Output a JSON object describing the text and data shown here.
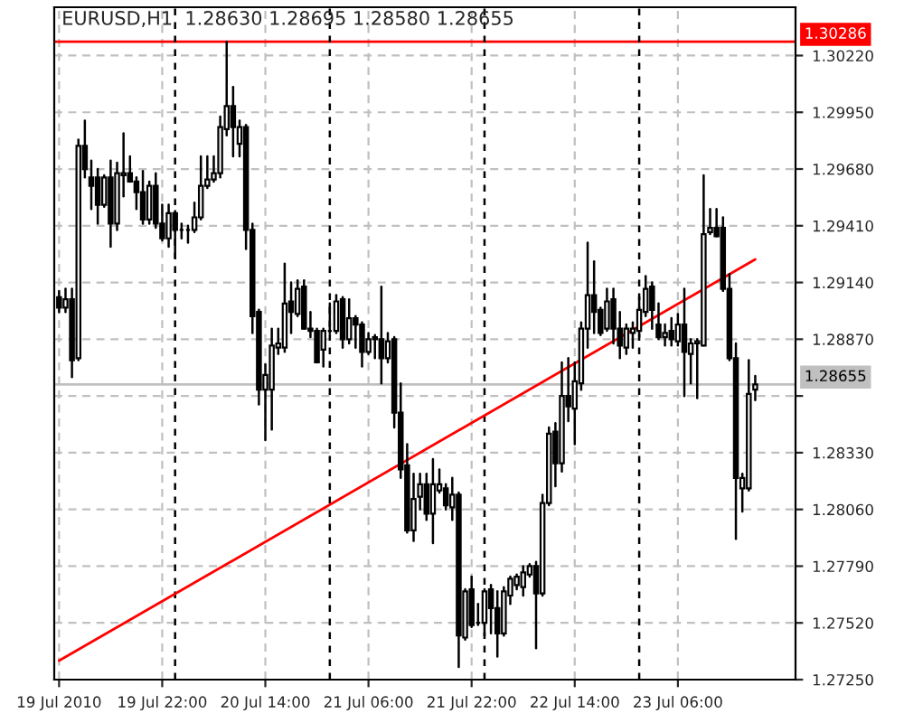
{
  "chart_data": {
    "type": "candlestick",
    "title": "EURUSD,H1  1.28630 1.28695 1.28580 1.28655",
    "x": [
      "2010-07-19T06:00",
      "2010-07-19T07:00",
      "2010-07-19T08:00",
      "2010-07-19T09:00",
      "2010-07-19T10:00",
      "2010-07-19T11:00",
      "2010-07-19T12:00",
      "2010-07-19T13:00",
      "2010-07-19T14:00",
      "2010-07-19T15:00",
      "2010-07-19T16:00",
      "2010-07-19T17:00",
      "2010-07-19T18:00",
      "2010-07-19T19:00",
      "2010-07-19T20:00",
      "2010-07-19T21:00",
      "2010-07-19T22:00",
      "2010-07-19T23:00",
      "2010-07-20T00:00",
      "2010-07-20T01:00",
      "2010-07-20T02:00",
      "2010-07-20T03:00",
      "2010-07-20T04:00",
      "2010-07-20T05:00",
      "2010-07-20T06:00",
      "2010-07-20T07:00",
      "2010-07-20T08:00",
      "2010-07-20T09:00",
      "2010-07-20T10:00",
      "2010-07-20T11:00",
      "2010-07-20T12:00",
      "2010-07-20T13:00",
      "2010-07-20T14:00",
      "2010-07-20T15:00",
      "2010-07-20T16:00",
      "2010-07-20T17:00",
      "2010-07-20T18:00",
      "2010-07-20T19:00",
      "2010-07-20T20:00",
      "2010-07-20T21:00",
      "2010-07-20T22:00",
      "2010-07-20T23:00",
      "2010-07-21T00:00",
      "2010-07-21T01:00",
      "2010-07-21T02:00",
      "2010-07-21T03:00",
      "2010-07-21T04:00",
      "2010-07-21T05:00",
      "2010-07-21T06:00",
      "2010-07-21T07:00",
      "2010-07-21T08:00",
      "2010-07-21T09:00",
      "2010-07-21T10:00",
      "2010-07-21T11:00",
      "2010-07-21T12:00",
      "2010-07-21T13:00",
      "2010-07-21T14:00",
      "2010-07-21T15:00",
      "2010-07-21T16:00",
      "2010-07-21T17:00",
      "2010-07-21T18:00",
      "2010-07-21T19:00",
      "2010-07-21T20:00",
      "2010-07-21T21:00",
      "2010-07-21T22:00",
      "2010-07-21T23:00",
      "2010-07-22T00:00",
      "2010-07-22T01:00",
      "2010-07-22T02:00",
      "2010-07-22T03:00",
      "2010-07-22T04:00",
      "2010-07-22T05:00",
      "2010-07-22T06:00",
      "2010-07-22T07:00",
      "2010-07-22T08:00",
      "2010-07-22T09:00",
      "2010-07-22T10:00",
      "2010-07-22T11:00",
      "2010-07-22T12:00",
      "2010-07-22T13:00",
      "2010-07-22T14:00",
      "2010-07-22T15:00",
      "2010-07-22T16:00",
      "2010-07-22T17:00",
      "2010-07-22T18:00",
      "2010-07-22T19:00",
      "2010-07-22T20:00",
      "2010-07-22T21:00",
      "2010-07-22T22:00",
      "2010-07-22T23:00",
      "2010-07-23T00:00",
      "2010-07-23T01:00",
      "2010-07-23T02:00",
      "2010-07-23T03:00",
      "2010-07-23T04:00",
      "2010-07-23T05:00",
      "2010-07-23T06:00",
      "2010-07-23T07:00",
      "2010-07-23T08:00",
      "2010-07-23T09:00",
      "2010-07-23T10:00",
      "2010-07-23T11:00",
      "2010-07-23T12:00",
      "2010-07-23T13:00",
      "2010-07-23T14:00",
      "2010-07-23T15:00",
      "2010-07-23T16:00",
      "2010-07-23T17:00",
      "2010-07-23T18:00"
    ],
    "ohlc": [
      [
        1.2907,
        1.291,
        1.29,
        1.2902
      ],
      [
        1.2902,
        1.2911,
        1.29,
        1.2906
      ],
      [
        1.2906,
        1.2911,
        1.2869,
        1.2877
      ],
      [
        1.2878,
        1.2982,
        1.2877,
        1.2979
      ],
      [
        1.2979,
        1.2991,
        1.2964,
        1.2968
      ],
      [
        1.2964,
        1.2972,
        1.2949,
        1.296
      ],
      [
        1.2964,
        1.2968,
        1.2942,
        1.2951
      ],
      [
        1.2951,
        1.2965,
        1.295,
        1.2964
      ],
      [
        1.2964,
        1.2972,
        1.2931,
        1.2942
      ],
      [
        1.2942,
        1.2971,
        1.2939,
        1.2966
      ],
      [
        1.2965,
        1.2985,
        1.2955,
        1.2966
      ],
      [
        1.2966,
        1.2974,
        1.2962,
        1.2962
      ],
      [
        1.2962,
        1.2964,
        1.2949,
        1.2957
      ],
      [
        1.2957,
        1.2967,
        1.2942,
        1.2944
      ],
      [
        1.2944,
        1.2962,
        1.2942,
        1.296
      ],
      [
        1.296,
        1.2966,
        1.294,
        1.2942
      ],
      [
        1.2942,
        1.2951,
        1.2934,
        1.2935
      ],
      [
        1.2935,
        1.2951,
        1.2931,
        1.2947
      ],
      [
        1.2947,
        1.2948,
        1.2926,
        1.2939
      ],
      [
        1.2939,
        1.2942,
        1.2935,
        1.2939
      ],
      [
        1.2939,
        1.2941,
        1.2933,
        1.2939
      ],
      [
        1.2939,
        1.2952,
        1.2938,
        1.2945
      ],
      [
        1.2945,
        1.2974,
        1.2944,
        1.296
      ],
      [
        1.296,
        1.2974,
        1.2959,
        1.2963
      ],
      [
        1.2963,
        1.2974,
        1.2962,
        1.2966
      ],
      [
        1.2966,
        1.2993,
        1.2964,
        1.2988
      ],
      [
        1.2987,
        1.30286,
        1.2984,
        1.2998
      ],
      [
        1.2998,
        1.3007,
        1.2974,
        1.2988
      ],
      [
        1.298,
        1.2991,
        1.2974,
        1.2988
      ],
      [
        1.2988,
        1.2989,
        1.293,
        1.2939
      ],
      [
        1.2939,
        1.2942,
        1.289,
        1.2898
      ],
      [
        1.29,
        1.2901,
        1.2856,
        1.2863
      ],
      [
        1.2863,
        1.2875,
        1.2839,
        1.287
      ],
      [
        1.2863,
        1.2892,
        1.2844,
        1.2884
      ],
      [
        1.2883,
        1.2892,
        1.288,
        1.2885
      ],
      [
        1.2883,
        1.2923,
        1.2881,
        1.2904
      ],
      [
        1.2905,
        1.2914,
        1.289,
        1.29
      ],
      [
        1.2899,
        1.2915,
        1.2898,
        1.2911
      ],
      [
        1.2912,
        1.2915,
        1.2892,
        1.2892
      ],
      [
        1.2892,
        1.29,
        1.2888,
        1.2891
      ],
      [
        1.2891,
        1.2892,
        1.2876,
        1.2876
      ],
      [
        1.2882,
        1.2892,
        1.2874,
        1.2891
      ],
      [
        1.2891,
        1.2904,
        1.289,
        1.2891
      ],
      [
        1.2891,
        1.2908,
        1.289,
        1.2905
      ],
      [
        1.2906,
        1.2907,
        1.2883,
        1.2887
      ],
      [
        1.2887,
        1.2906,
        1.2885,
        1.2897
      ],
      [
        1.2897,
        1.2898,
        1.2883,
        1.2894
      ],
      [
        1.2894,
        1.2895,
        1.2874,
        1.2881
      ],
      [
        1.2881,
        1.289,
        1.288,
        1.2887
      ],
      [
        1.2888,
        1.2889,
        1.2878,
        1.2887
      ],
      [
        1.2887,
        1.2912,
        1.2866,
        1.2878
      ],
      [
        1.2878,
        1.289,
        1.2876,
        1.2886
      ],
      [
        1.2887,
        1.2888,
        1.2845,
        1.2852
      ],
      [
        1.2852,
        1.2866,
        1.2821,
        1.2825
      ],
      [
        1.2827,
        1.2837,
        1.2795,
        1.2796
      ],
      [
        1.2796,
        1.2823,
        1.2791,
        1.2811
      ],
      [
        1.2812,
        1.2823,
        1.2806,
        1.2818
      ],
      [
        1.2818,
        1.2823,
        1.2801,
        1.2804
      ],
      [
        1.2804,
        1.283,
        1.279,
        1.2818
      ],
      [
        1.2815,
        1.2825,
        1.2814,
        1.2818
      ],
      [
        1.2816,
        1.2818,
        1.2806,
        1.2808
      ],
      [
        1.2807,
        1.2821,
        1.2801,
        1.2813
      ],
      [
        1.2813,
        1.2814,
        1.2731,
        1.2746
      ],
      [
        1.2745,
        1.2768,
        1.2744,
        1.2767
      ],
      [
        1.2768,
        1.2774,
        1.275,
        1.2751
      ],
      [
        1.2752,
        1.2761,
        1.2751,
        1.2752
      ],
      [
        1.2752,
        1.2768,
        1.2746,
        1.2767
      ],
      [
        1.2768,
        1.277,
        1.2747,
        1.2759
      ],
      [
        1.2759,
        1.2767,
        1.2736,
        1.2747
      ],
      [
        1.2747,
        1.2769,
        1.2746,
        1.2767
      ],
      [
        1.2765,
        1.2774,
        1.2761,
        1.2773
      ],
      [
        1.277,
        1.2775,
        1.2768,
        1.2774
      ],
      [
        1.2769,
        1.2779,
        1.2765,
        1.2776
      ],
      [
        1.2775,
        1.278,
        1.2774,
        1.2779
      ],
      [
        1.2779,
        1.2781,
        1.274,
        1.2766
      ],
      [
        1.2766,
        1.2813,
        1.2765,
        1.2809
      ],
      [
        1.2809,
        1.2845,
        1.2808,
        1.2842
      ],
      [
        1.2843,
        1.2847,
        1.2817,
        1.2828
      ],
      [
        1.2828,
        1.2876,
        1.2824,
        1.286
      ],
      [
        1.286,
        1.2878,
        1.2848,
        1.2855
      ],
      [
        1.2854,
        1.2876,
        1.2837,
        1.2867
      ],
      [
        1.2866,
        1.2895,
        1.2863,
        1.2892
      ],
      [
        1.2892,
        1.2933,
        1.2883,
        1.2908
      ],
      [
        1.2908,
        1.2924,
        1.289,
        1.29
      ],
      [
        1.2901,
        1.2902,
        1.2889,
        1.289
      ],
      [
        1.2892,
        1.2911,
        1.2891,
        1.2905
      ],
      [
        1.2906,
        1.2911,
        1.2885,
        1.2892
      ],
      [
        1.2892,
        1.29,
        1.2878,
        1.2884
      ],
      [
        1.2883,
        1.2894,
        1.288,
        1.2892
      ],
      [
        1.289,
        1.2895,
        1.2883,
        1.2892
      ],
      [
        1.2891,
        1.2907,
        1.2888,
        1.2901
      ],
      [
        1.29,
        1.2917,
        1.2898,
        1.2911
      ],
      [
        1.2912,
        1.2914,
        1.2892,
        1.2901
      ],
      [
        1.2894,
        1.2904,
        1.2887,
        1.2888
      ],
      [
        1.2888,
        1.2894,
        1.2884,
        1.289
      ],
      [
        1.2891,
        1.2897,
        1.2884,
        1.2887
      ],
      [
        1.2886,
        1.2899,
        1.2884,
        1.2894
      ],
      [
        1.2894,
        1.2911,
        1.286,
        1.2881
      ],
      [
        1.288,
        1.2887,
        1.2866,
        1.2885
      ],
      [
        1.2885,
        1.2887,
        1.2859,
        1.2886
      ],
      [
        1.2884,
        1.2965,
        1.2884,
        1.2937
      ],
      [
        1.2938,
        1.2949,
        1.2937,
        1.294
      ],
      [
        1.294,
        1.2949,
        1.2936,
        1.2936
      ],
      [
        1.294,
        1.2945,
        1.291,
        1.2911
      ],
      [
        1.2911,
        1.2918,
        1.2877,
        1.2878
      ],
      [
        1.2878,
        1.2885,
        1.2792,
        1.2821
      ],
      [
        1.2816,
        1.2823,
        1.2805,
        1.2821
      ],
      [
        1.2816,
        1.2877,
        1.2815,
        1.2861
      ],
      [
        1.2863,
        1.28695,
        1.2858,
        1.28655
      ]
    ],
    "series": [
      {
        "type": "line",
        "x": [
          "2010-07-19T06:00",
          "2010-07-23T18:00"
        ],
        "values": [
          1.2734,
          1.2925
        ],
        "color": "#ff0000"
      }
    ],
    "xlim": [
      "2010-07-19T05:15",
      "2010-07-24T00:15"
    ],
    "ylim": [
      1.2725,
      1.3045
    ],
    "xticks": [
      {
        "value": "2010-07-19T06:00",
        "label": "19 Jul 2010"
      },
      {
        "value": "2010-07-19T22:00",
        "label": "19 Jul 22:00"
      },
      {
        "value": "2010-07-20T14:00",
        "label": "20 Jul 14:00"
      },
      {
        "value": "2010-07-21T06:00",
        "label": "21 Jul 06:00"
      },
      {
        "value": "2010-07-21T22:00",
        "label": "21 Jul 22:00"
      },
      {
        "value": "2010-07-22T14:00",
        "label": "22 Jul 14:00"
      },
      {
        "value": "2010-07-23T06:00",
        "label": "23 Jul 06:00"
      }
    ],
    "yticks": [
      {
        "value": 1.2725,
        "label": "1.27250"
      },
      {
        "value": 1.2752,
        "label": "1.27520"
      },
      {
        "value": 1.2779,
        "label": "1.27790"
      },
      {
        "value": 1.2806,
        "label": "1.28060"
      },
      {
        "value": 1.2833,
        "label": "1.28330"
      },
      {
        "value": 1.286,
        "label": null
      },
      {
        "value": 1.2887,
        "label": "1.28870"
      },
      {
        "value": 1.2914,
        "label": "1.29140"
      },
      {
        "value": 1.2941,
        "label": "1.29410"
      },
      {
        "value": 1.2968,
        "label": "1.29680"
      },
      {
        "value": 1.2995,
        "label": "1.29950"
      },
      {
        "value": 1.3022,
        "label": "1.30220"
      }
    ],
    "grid": true,
    "ref_lines": [
      {
        "axis": "y",
        "value": 1.30286,
        "label": "1.30286",
        "color": "#ff0000",
        "line_style": "solid"
      },
      {
        "axis": "y",
        "value": 1.28655,
        "label": "1.28655",
        "color": "#c0c0c0",
        "line_style": "solid"
      },
      {
        "axis": "x",
        "value": "2010-07-20T00:00",
        "color": "#000000",
        "line_style": "dashed"
      },
      {
        "axis": "x",
        "value": "2010-07-21T00:00",
        "color": "#000000",
        "line_style": "dashed"
      },
      {
        "axis": "x",
        "value": "2010-07-22T00:00",
        "color": "#000000",
        "line_style": "dashed"
      },
      {
        "axis": "x",
        "value": "2010-07-23T00:00",
        "color": "#000000",
        "line_style": "dashed"
      }
    ]
  }
}
